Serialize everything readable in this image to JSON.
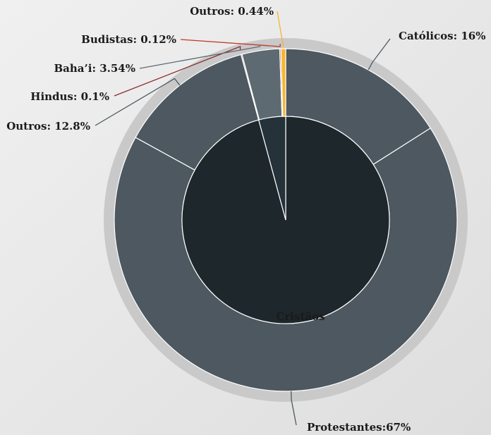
{
  "chart_data": {
    "type": "sunburst",
    "outer": {
      "values": [
        16,
        67,
        12.8,
        0.1,
        3.54,
        0.12,
        0.44
      ],
      "value_labels": [
        "Católicos: 16%",
        "Protestantes:67%",
        "Outros: 12.8%",
        "Hindus: 0.1%",
        "Baha’i: 3.54%",
        "Budistas: 0.12%",
        "Outros: 0.44%"
      ],
      "colors": [
        "#4d5860",
        "#4d5860",
        "#4d5860",
        "#8b2e2e",
        "#5e6a72",
        "#c0392b",
        "#f7b52c"
      ]
    },
    "inner": {
      "categories": [
        "Cristãos",
        null
      ],
      "values": [
        95.8,
        4.2
      ],
      "colors": [
        "#1e272c",
        "#26323a"
      ]
    }
  }
}
